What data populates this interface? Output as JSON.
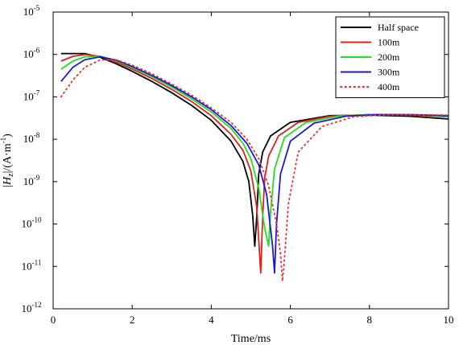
{
  "chart_data": {
    "type": "line",
    "xlabel": "Time/ms",
    "ylabel": {
      "prefix": "|",
      "symbol": "H",
      "subscript": "z",
      "suffix": "|/(A·m",
      "exponent": "-1",
      "close": ")"
    },
    "xlim": [
      0,
      10
    ],
    "ylim": [
      1e-12,
      1e-05
    ],
    "yscale": "log",
    "x_ticks": [
      "0",
      "2",
      "4",
      "6",
      "8",
      "10"
    ],
    "y_ticks": [
      {
        "base": "10",
        "exp": "-12"
      },
      {
        "base": "10",
        "exp": "-11"
      },
      {
        "base": "10",
        "exp": "-10"
      },
      {
        "base": "10",
        "exp": "-9"
      },
      {
        "base": "10",
        "exp": "-8"
      },
      {
        "base": "10",
        "exp": "-7"
      },
      {
        "base": "10",
        "exp": "-6"
      },
      {
        "base": "10",
        "exp": "-5"
      }
    ],
    "grid": false,
    "legend_position": "top-right",
    "series": [
      {
        "name": "Half space",
        "color": "#000000",
        "style": "solid",
        "x": [
          0.2,
          0.5,
          0.8,
          1.2,
          1.6,
          2.0,
          2.5,
          3.0,
          3.5,
          4.0,
          4.5,
          4.8,
          4.95,
          5.05,
          5.1,
          5.15,
          5.2,
          5.3,
          5.5,
          6.0,
          7.0,
          8.0,
          9.0,
          10.0
        ],
        "y": [
          1.05e-06,
          1.05e-06,
          1.05e-06,
          8.5e-07,
          6e-07,
          4e-07,
          2.3e-07,
          1.25e-07,
          6.3e-08,
          2.8e-08,
          9e-09,
          3e-09,
          1e-09,
          1.5e-10,
          3e-11,
          1.5e-10,
          1.5e-09,
          5e-09,
          1.2e-08,
          2.5e-08,
          3.6e-08,
          3.7e-08,
          3.5e-08,
          3e-08
        ]
      },
      {
        "name": "100m",
        "color": "#e0201b",
        "style": "solid",
        "x": [
          0.2,
          0.5,
          0.8,
          1.2,
          1.6,
          2.0,
          2.5,
          3.0,
          3.5,
          4.0,
          4.5,
          4.8,
          5.0,
          5.15,
          5.25,
          5.3,
          5.35,
          5.45,
          5.7,
          6.2,
          7.0,
          8.0,
          9.0,
          10.0
        ],
        "y": [
          7e-07,
          9e-07,
          1e-06,
          9e-07,
          6.5e-07,
          4.5e-07,
          2.7e-07,
          1.5e-07,
          7.8e-08,
          3.6e-08,
          1.3e-08,
          5.5e-09,
          1.8e-09,
          2.5e-10,
          7e-12,
          1.5e-10,
          1.2e-09,
          4e-09,
          1.2e-08,
          2.5e-08,
          3.5e-08,
          3.8e-08,
          3.7e-08,
          3.4e-08
        ]
      },
      {
        "name": "200m",
        "color": "#22dd22",
        "style": "solid",
        "x": [
          0.2,
          0.5,
          0.8,
          1.2,
          1.6,
          2.0,
          2.5,
          3.0,
          3.5,
          4.0,
          4.5,
          4.8,
          5.0,
          5.2,
          5.35,
          5.45,
          5.5,
          5.6,
          5.85,
          6.4,
          7.2,
          8.0,
          9.0,
          10.0
        ],
        "y": [
          4.5e-07,
          7e-07,
          8.8e-07,
          9e-07,
          7e-07,
          4.9e-07,
          3e-07,
          1.7e-07,
          9e-08,
          4.4e-08,
          1.8e-08,
          8e-09,
          3.5e-09,
          7e-10,
          8e-11,
          3e-11,
          2e-10,
          2e-09,
          1.1e-08,
          2.5e-08,
          3.5e-08,
          3.8e-08,
          3.8e-08,
          3.5e-08
        ]
      },
      {
        "name": "300m",
        "color": "#1a1ad6",
        "style": "solid",
        "x": [
          0.2,
          0.5,
          0.8,
          1.2,
          1.6,
          2.0,
          2.5,
          3.0,
          3.5,
          4.0,
          4.5,
          4.9,
          5.2,
          5.4,
          5.55,
          5.6,
          5.65,
          5.75,
          6.0,
          6.6,
          7.4,
          8.2,
          9.0,
          10.0
        ],
        "y": [
          2.3e-07,
          5e-07,
          7.5e-07,
          8.8e-07,
          7.3e-07,
          5.2e-07,
          3.2e-07,
          1.85e-07,
          1e-07,
          5e-08,
          2.1e-08,
          8e-09,
          2.5e-09,
          5e-10,
          3e-11,
          7e-12,
          1e-10,
          1.5e-09,
          9e-09,
          2.4e-08,
          3.5e-08,
          3.8e-08,
          3.8e-08,
          3.6e-08
        ]
      },
      {
        "name": "400m",
        "color": "#f03030",
        "style": "dotted",
        "x": [
          0.2,
          0.5,
          0.8,
          1.2,
          1.6,
          2.0,
          2.5,
          3.0,
          3.5,
          4.0,
          4.5,
          4.9,
          5.2,
          5.45,
          5.65,
          5.75,
          5.8,
          5.85,
          5.95,
          6.2,
          6.8,
          7.6,
          8.4,
          9.2,
          10.0
        ],
        "y": [
          1e-07,
          2.5e-07,
          5e-07,
          7.5e-07,
          7.5e-07,
          5.6e-07,
          3.5e-07,
          2e-07,
          1.1e-07,
          5.5e-08,
          2.5e-08,
          1e-08,
          3.5e-09,
          8e-10,
          1e-10,
          2e-11,
          4.5e-12,
          1.5e-11,
          3e-10,
          5e-09,
          2e-08,
          3.4e-08,
          3.8e-08,
          3.8e-08,
          3.7e-08
        ]
      }
    ]
  }
}
